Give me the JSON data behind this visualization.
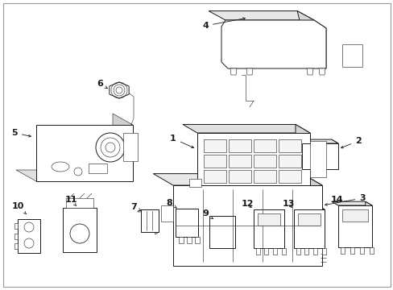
{
  "bg_color": "#ffffff",
  "line_color": "#1a1a1a",
  "fig_width": 4.89,
  "fig_height": 3.6,
  "dpi": 100,
  "border_color": "#999999",
  "lw_main": 0.7,
  "lw_detail": 0.4,
  "components": {
    "label_fontsize": 8,
    "arrow_lw": 0.6,
    "arrow_ms": 5
  }
}
